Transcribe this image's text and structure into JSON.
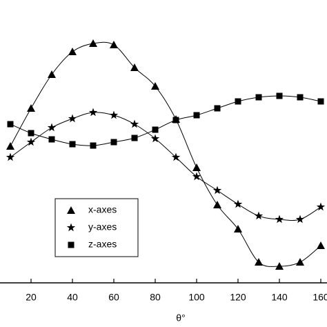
{
  "chart_data": {
    "type": "line",
    "x_label": "θ°",
    "x": [
      10,
      20,
      30,
      40,
      50,
      60,
      70,
      80,
      90,
      100,
      110,
      120,
      130,
      140,
      150,
      160
    ],
    "series": [
      {
        "name": "x-axes",
        "color": "#000000",
        "marker": "triangle",
        "values": [
          198,
          253,
          302,
          335,
          347,
          345,
          312,
          285,
          237,
          167,
          113,
          78,
          30,
          24,
          30,
          54
        ]
      },
      {
        "name": "y-axes",
        "color": "#000000",
        "marker": "star",
        "values": [
          182,
          204,
          225,
          238,
          247,
          243,
          230,
          209,
          182,
          154,
          134,
          114,
          97,
          92,
          92,
          110
        ]
      },
      {
        "name": "z-axes",
        "color": "#000000",
        "marker": "square",
        "values": [
          230,
          217,
          208,
          201,
          199,
          204,
          210,
          222,
          236,
          243,
          253,
          263,
          269,
          271,
          269,
          263
        ]
      }
    ],
    "xlim": [
      0,
      170
    ],
    "xticks": [
      20,
      40,
      60,
      80,
      100,
      120,
      140,
      160
    ],
    "ylim": [
      0,
      420
    ]
  }
}
